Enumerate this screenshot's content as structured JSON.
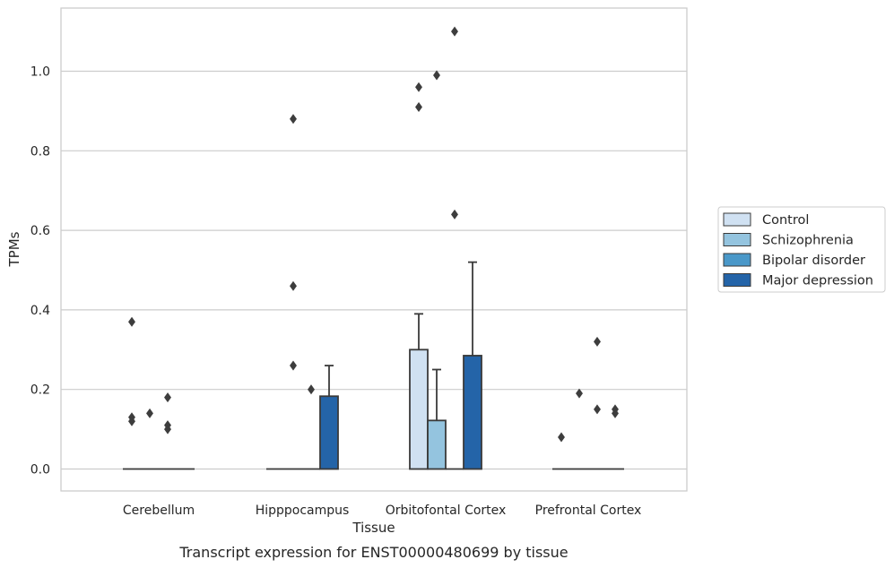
{
  "chart_data": {
    "type": "bar",
    "title": "",
    "caption": "Transcript expression for ENST00000480699 by tissue",
    "xlabel": "Tissue",
    "ylabel": "TPMs",
    "ylim": [
      -0.05,
      1.16
    ],
    "yticks": [
      0.0,
      0.2,
      0.4,
      0.6,
      0.8,
      1.0
    ],
    "ytick_labels": [
      "0.0",
      "0.2",
      "0.4",
      "0.6",
      "0.8",
      "1.0"
    ],
    "grid": "horizontal",
    "legend_placement": "right",
    "categories": [
      "Cerebellum",
      "Hipppocampus",
      "Orbitofontal Cortex",
      "Prefrontal Cortex"
    ],
    "series": [
      {
        "name": "Control",
        "color": "#d0e1f2",
        "values": [
          0.0,
          0.0,
          0.3,
          0.0
        ],
        "error_upper": [
          null,
          null,
          0.39,
          null
        ],
        "outliers": [
          [
            0.37,
            0.13,
            0.12
          ],
          [],
          [
            0.96,
            0.91
          ],
          [
            0.08
          ]
        ]
      },
      {
        "name": "Schizophrenia",
        "color": "#94c4df",
        "values": [
          0.0,
          0.0,
          0.122,
          0.0
        ],
        "error_upper": [
          null,
          null,
          0.25,
          null
        ],
        "outliers": [
          [
            0.14
          ],
          [
            0.88,
            0.46,
            0.26
          ],
          [
            0.99
          ],
          [
            0.19
          ]
        ]
      },
      {
        "name": "Bipolar disorder",
        "color": "#4a98c9",
        "values": [
          0.0,
          0.0,
          0.0,
          0.0
        ],
        "error_upper": [
          null,
          null,
          null,
          null
        ],
        "outliers": [
          [
            0.18,
            0.11,
            0.1
          ],
          [
            0.2
          ],
          [
            1.1,
            0.64
          ],
          [
            0.32,
            0.15
          ]
        ]
      },
      {
        "name": "Major depression",
        "color": "#2464a8",
        "values": [
          0.0,
          0.183,
          0.285,
          0.0
        ],
        "error_upper": [
          null,
          0.26,
          0.52,
          null
        ],
        "outliers": [
          [],
          [],
          [],
          [
            0.15,
            0.14
          ]
        ]
      }
    ]
  }
}
